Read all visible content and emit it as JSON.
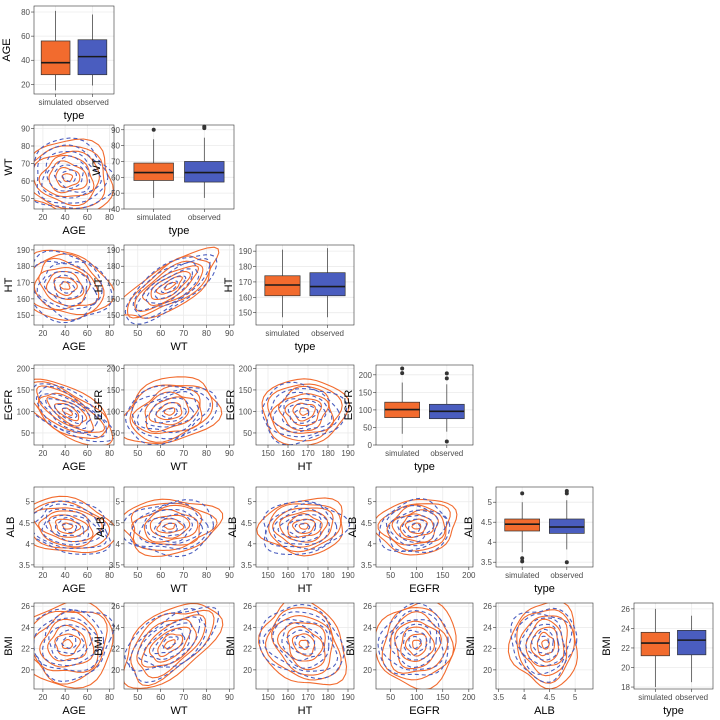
{
  "figure": {
    "type_label": "type",
    "groups": [
      "simulated",
      "observed"
    ]
  },
  "colors": {
    "simulated": "#f26b2e",
    "observed": "#4a5dbf",
    "grid": "#ebebeb",
    "frame": "#333333"
  },
  "chart_data": {
    "type": "scatter-matrix",
    "layout": "lower-triangle pairs plot: box plots on the diagonal, 2D density contours off-diagonal",
    "variables": [
      {
        "name": "AGE",
        "ticks": [
          20,
          40,
          60,
          80
        ],
        "range": [
          12,
          84
        ]
      },
      {
        "name": "WT",
        "ticks": [
          50,
          60,
          70,
          80,
          90
        ],
        "range": [
          44,
          92
        ]
      },
      {
        "name": "HT",
        "ticks": [
          150,
          160,
          170,
          180,
          190
        ],
        "range": [
          144,
          193
        ]
      },
      {
        "name": "EGFR",
        "ticks": [
          50,
          100,
          150,
          200
        ],
        "range": [
          22,
          208
        ]
      },
      {
        "name": "ALB",
        "ticks": [
          3.5,
          4.0,
          4.5,
          5.0
        ],
        "range": [
          3.45,
          5.35
        ]
      },
      {
        "name": "BMI",
        "ticks": [
          20,
          22,
          24,
          26
        ],
        "range": [
          18.2,
          26.3
        ]
      }
    ],
    "diagonal_ticks": {
      "AGE": {
        "ticks": [
          20,
          40,
          60,
          80
        ],
        "range": [
          12,
          85
        ]
      },
      "WT": {
        "ticks": [
          40,
          50,
          60,
          70,
          80,
          90
        ],
        "range": [
          40,
          93
        ]
      },
      "HT": {
        "ticks": [
          150,
          160,
          170,
          180,
          190
        ],
        "range": [
          142,
          194
        ]
      },
      "EGFR": {
        "ticks": [
          0,
          50,
          100,
          150,
          200
        ],
        "range": [
          0,
          228
        ]
      },
      "ALB": {
        "ticks": [
          3.5,
          4.0,
          4.5,
          5.0
        ],
        "range": [
          3.38,
          5.38
        ]
      },
      "BMI": {
        "ticks": [
          18,
          20,
          22,
          24,
          26
        ],
        "range": [
          17.8,
          26.6
        ]
      }
    },
    "boxplots": [
      {
        "variable": "AGE",
        "simulated": {
          "min": 15,
          "q1": 28,
          "median": 38,
          "q3": 56,
          "max": 81,
          "outliers": []
        },
        "observed": {
          "min": 19,
          "q1": 28,
          "median": 43,
          "q3": 57,
          "max": 78,
          "outliers": []
        }
      },
      {
        "variable": "WT",
        "simulated": {
          "min": 47,
          "q1": 58,
          "median": 63,
          "q3": 69,
          "max": 84,
          "outliers": [
            90
          ]
        },
        "observed": {
          "min": 47,
          "q1": 57,
          "median": 63,
          "q3": 70,
          "max": 85,
          "outliers": [
            91,
            92
          ]
        }
      },
      {
        "variable": "HT",
        "simulated": {
          "min": 147,
          "q1": 161,
          "median": 168,
          "q3": 174,
          "max": 191,
          "outliers": []
        },
        "observed": {
          "min": 147,
          "q1": 161,
          "median": 167,
          "q3": 176,
          "max": 192,
          "outliers": []
        }
      },
      {
        "variable": "EGFR",
        "simulated": {
          "min": 32,
          "q1": 78,
          "median": 101,
          "q3": 122,
          "max": 178,
          "outliers": [
            205,
            218
          ]
        },
        "observed": {
          "min": 38,
          "q1": 75,
          "median": 96,
          "q3": 116,
          "max": 173,
          "outliers": [
            190,
            204,
            10
          ]
        }
      },
      {
        "variable": "ALB",
        "simulated": {
          "min": 3.75,
          "q1": 4.28,
          "median": 4.45,
          "q3": 4.58,
          "max": 5.0,
          "outliers": [
            5.22,
            3.6,
            3.52
          ]
        },
        "observed": {
          "min": 3.82,
          "q1": 4.22,
          "median": 4.38,
          "q3": 4.58,
          "max": 5.05,
          "outliers": [
            5.22,
            5.28,
            3.5
          ]
        }
      },
      {
        "variable": "BMI",
        "simulated": {
          "min": 18.0,
          "q1": 21.2,
          "median": 22.5,
          "q3": 23.6,
          "max": 26.0,
          "outliers": []
        },
        "observed": {
          "min": 18.5,
          "q1": 21.3,
          "median": 22.8,
          "q3": 23.8,
          "max": 25.3,
          "outliers": []
        }
      }
    ],
    "density_centers": [
      {
        "x": "AGE",
        "y": "WT",
        "simulated": {
          "mx": 42,
          "my": 62,
          "sx": 18,
          "sy": 9,
          "rho": -0.05
        },
        "observed": {
          "mx": 44,
          "my": 63,
          "sx": 18,
          "sy": 9.5,
          "rho": -0.05
        }
      },
      {
        "x": "AGE",
        "y": "HT",
        "simulated": {
          "mx": 40,
          "my": 168,
          "sx": 17,
          "sy": 9,
          "rho": -0.15
        },
        "observed": {
          "mx": 42,
          "my": 167,
          "sx": 18,
          "sy": 10,
          "rho": -0.15
        }
      },
      {
        "x": "WT",
        "y": "HT",
        "simulated": {
          "mx": 64,
          "my": 168,
          "sx": 9,
          "sy": 9,
          "rho": 0.72
        },
        "observed": {
          "mx": 64,
          "my": 167,
          "sx": 9.5,
          "sy": 10,
          "rho": 0.72
        }
      },
      {
        "x": "AGE",
        "y": "EGFR",
        "simulated": {
          "mx": 42,
          "my": 100,
          "sx": 18,
          "sy": 33,
          "rho": -0.65
        },
        "observed": {
          "mx": 44,
          "my": 96,
          "sx": 18,
          "sy": 32,
          "rho": -0.65
        }
      },
      {
        "x": "WT",
        "y": "EGFR",
        "simulated": {
          "mx": 64,
          "my": 100,
          "sx": 9,
          "sy": 33,
          "rho": 0.25
        },
        "observed": {
          "mx": 64,
          "my": 96,
          "sx": 9.5,
          "sy": 32,
          "rho": 0.25
        }
      },
      {
        "x": "HT",
        "y": "EGFR",
        "simulated": {
          "mx": 168,
          "my": 100,
          "sx": 9,
          "sy": 33,
          "rho": 0.05
        },
        "observed": {
          "mx": 167,
          "my": 96,
          "sx": 10,
          "sy": 32,
          "rho": 0.05
        }
      },
      {
        "x": "AGE",
        "y": "ALB",
        "simulated": {
          "mx": 42,
          "my": 4.42,
          "sx": 18,
          "sy": 0.28,
          "rho": -0.2
        },
        "observed": {
          "mx": 44,
          "my": 4.38,
          "sx": 18,
          "sy": 0.3,
          "rho": -0.2
        }
      },
      {
        "x": "WT",
        "y": "ALB",
        "simulated": {
          "mx": 64,
          "my": 4.42,
          "sx": 9,
          "sy": 0.28,
          "rho": 0.1
        },
        "observed": {
          "mx": 64,
          "my": 4.38,
          "sx": 9.5,
          "sy": 0.3,
          "rho": 0.1
        }
      },
      {
        "x": "HT",
        "y": "ALB",
        "simulated": {
          "mx": 168,
          "my": 4.42,
          "sx": 9,
          "sy": 0.28,
          "rho": 0.1
        },
        "observed": {
          "mx": 167,
          "my": 4.38,
          "sx": 10,
          "sy": 0.3,
          "rho": 0.1
        }
      },
      {
        "x": "EGFR",
        "y": "ALB",
        "simulated": {
          "mx": 100,
          "my": 4.42,
          "sx": 33,
          "sy": 0.28,
          "rho": 0.1
        },
        "observed": {
          "mx": 96,
          "my": 4.38,
          "sx": 32,
          "sy": 0.3,
          "rho": 0.1
        }
      },
      {
        "x": "AGE",
        "y": "BMI",
        "simulated": {
          "mx": 42,
          "my": 22.4,
          "sx": 18,
          "sy": 1.7,
          "rho": 0.05
        },
        "observed": {
          "mx": 44,
          "my": 22.6,
          "sx": 18,
          "sy": 1.6,
          "rho": 0.05
        }
      },
      {
        "x": "WT",
        "y": "BMI",
        "simulated": {
          "mx": 64,
          "my": 22.4,
          "sx": 9,
          "sy": 1.7,
          "rho": 0.55
        },
        "observed": {
          "mx": 64,
          "my": 22.6,
          "sx": 9.5,
          "sy": 1.6,
          "rho": 0.55
        }
      },
      {
        "x": "HT",
        "y": "BMI",
        "simulated": {
          "mx": 168,
          "my": 22.4,
          "sx": 9,
          "sy": 1.7,
          "rho": -0.2
        },
        "observed": {
          "mx": 167,
          "my": 22.6,
          "sx": 10,
          "sy": 1.6,
          "rho": -0.2
        }
      },
      {
        "x": "EGFR",
        "y": "BMI",
        "simulated": {
          "mx": 100,
          "my": 22.4,
          "sx": 33,
          "sy": 1.7,
          "rho": 0.05
        },
        "observed": {
          "mx": 96,
          "my": 22.6,
          "sx": 32,
          "sy": 1.6,
          "rho": 0.05
        }
      },
      {
        "x": "ALB",
        "y": "BMI",
        "simulated": {
          "mx": 4.42,
          "my": 22.4,
          "sx": 0.28,
          "sy": 1.7,
          "rho": 0.0
        },
        "observed": {
          "mx": 4.38,
          "my": 22.6,
          "sx": 0.3,
          "sy": 1.6,
          "rho": 0.0
        }
      }
    ],
    "grid": true,
    "legend": "none"
  }
}
